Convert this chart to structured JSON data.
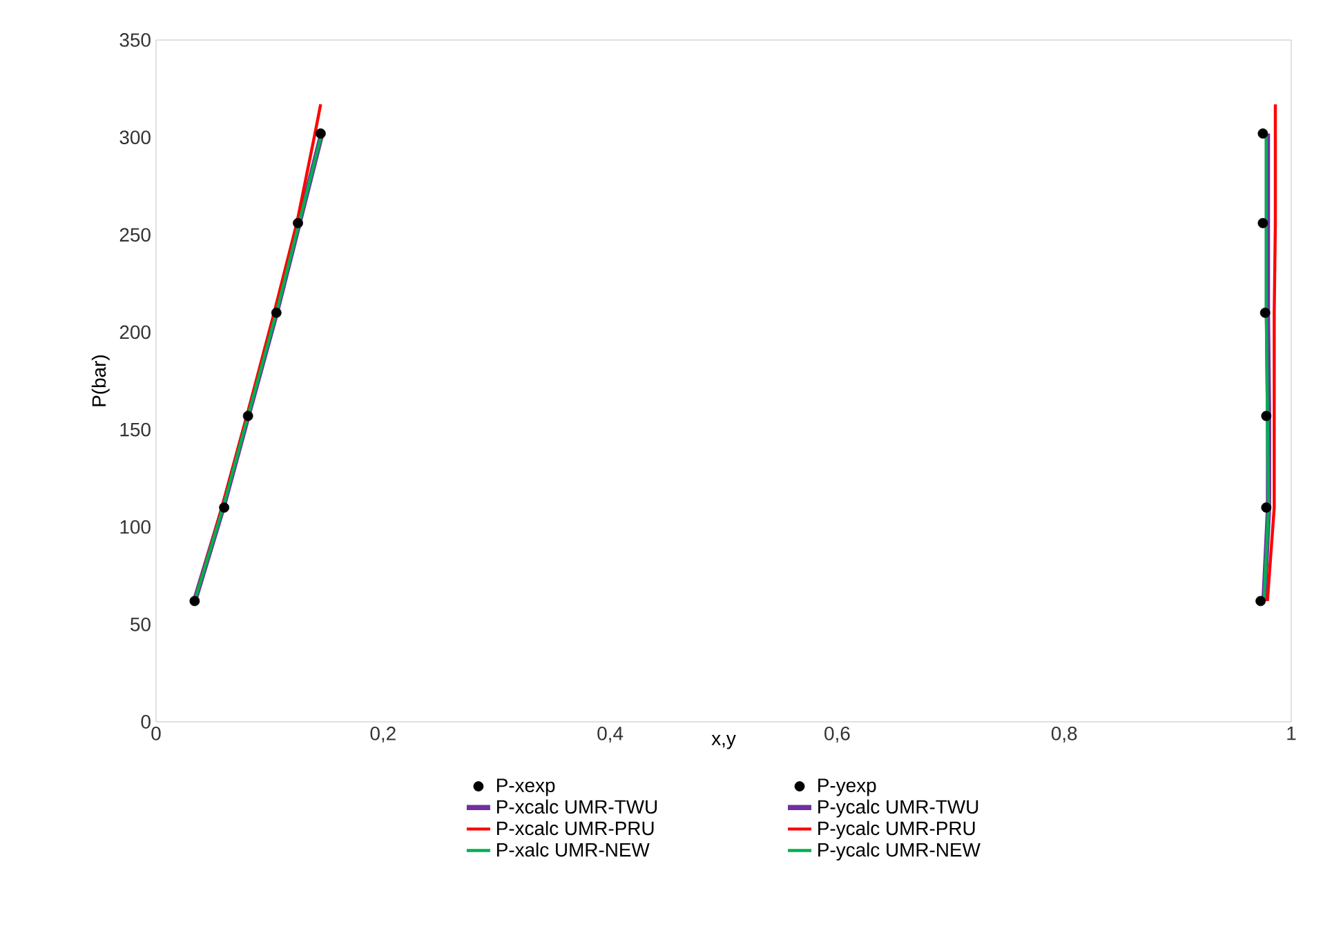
{
  "chart_data": {
    "type": "scatter",
    "xlabel": "x,y",
    "ylabel": "P(bar)",
    "xlim": [
      0,
      1
    ],
    "ylim": [
      0,
      350
    ],
    "xticks": [
      0,
      {
        "value": 0.2,
        "label": "0,2"
      },
      {
        "value": 0.4,
        "label": "0,4"
      },
      {
        "value": 0.6,
        "label": "0,6"
      },
      {
        "value": 0.8,
        "label": "0,8"
      },
      1
    ],
    "yticks": [
      0,
      50,
      100,
      150,
      200,
      250,
      300,
      350
    ],
    "grid": false,
    "legend": "bottom",
    "series": [
      {
        "name": "P-xexp",
        "marker": "circle",
        "color": "#000000",
        "x": [
          0.034,
          0.06,
          0.081,
          0.106,
          0.125,
          0.145
        ],
        "values": [
          62,
          110,
          157,
          210,
          256,
          302
        ]
      },
      {
        "name": "P-yexp",
        "marker": "circle",
        "color": "#000000",
        "x": [
          0.973,
          0.978,
          0.978,
          0.977,
          0.975,
          0.975
        ],
        "values": [
          62,
          110,
          157,
          210,
          256,
          302
        ]
      },
      {
        "name": "P-xcalc UMR-TWU",
        "type": "line",
        "color": "#7030a0",
        "x": [
          0.034,
          0.059,
          0.081,
          0.106,
          0.126,
          0.146
        ],
        "values": [
          62,
          110,
          157,
          210,
          256,
          302
        ]
      },
      {
        "name": "P-ycalc UMR-TWU",
        "type": "line",
        "color": "#7030a0",
        "x": [
          0.976,
          0.98,
          0.98,
          0.979,
          0.979,
          0.979
        ],
        "values": [
          62,
          110,
          157,
          210,
          256,
          302
        ]
      },
      {
        "name": "P-xcalc UMR-PRU",
        "type": "line",
        "color": "#ff0000",
        "x": [
          0.034,
          0.058,
          0.08,
          0.104,
          0.124,
          0.14,
          0.145
        ],
        "values": [
          62,
          110,
          157,
          210,
          256,
          302,
          317
        ]
      },
      {
        "name": "P-ycalc UMR-PRU",
        "type": "line",
        "color": "#ff0000",
        "x": [
          0.979,
          0.985,
          0.985,
          0.985,
          0.986,
          0.986,
          0.986
        ],
        "values": [
          62,
          110,
          157,
          210,
          256,
          302,
          317
        ]
      },
      {
        "name": "P-xalc UMR-NEW",
        "type": "line",
        "color": "#00b050",
        "x": [
          0.034,
          0.059,
          0.081,
          0.106,
          0.126,
          0.146
        ],
        "values": [
          62,
          110,
          157,
          210,
          256,
          302
        ]
      },
      {
        "name": "P-ycalc UMR-NEW",
        "type": "line",
        "color": "#00b050",
        "x": [
          0.976,
          0.98,
          0.979,
          0.978,
          0.978,
          0.978
        ],
        "values": [
          62,
          110,
          157,
          210,
          256,
          302
        ]
      }
    ]
  }
}
